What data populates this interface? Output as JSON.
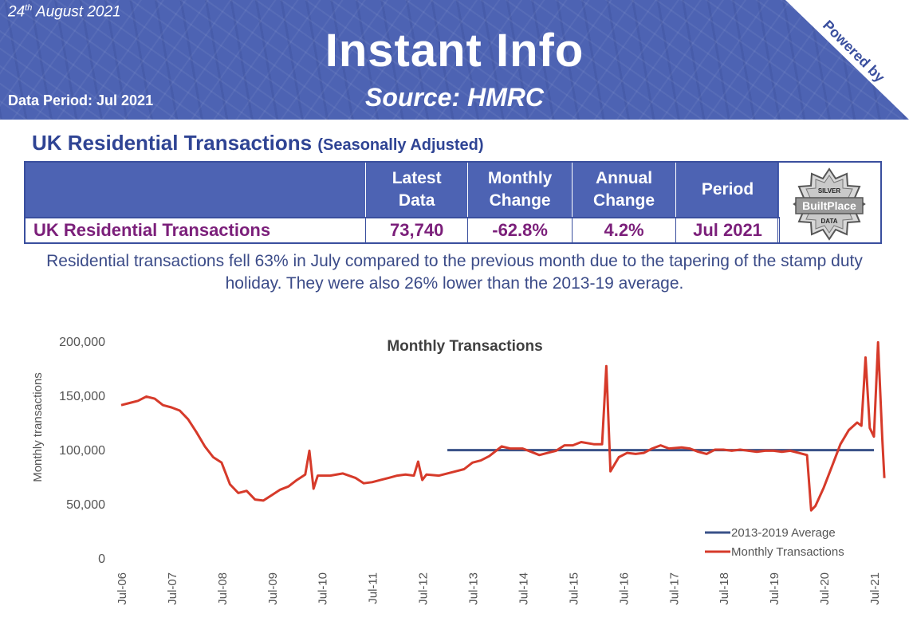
{
  "banner": {
    "date_day": "24",
    "date_suffix": "th",
    "date_rest": " August 2021",
    "title": "Instant Info",
    "source": "Source: HMRC",
    "period": "Data Period: Jul 2021",
    "powered_line1": "Powered by",
    "powered_line2": "BuiltPlace",
    "color": "#4d63b3"
  },
  "section": {
    "title": "UK Residential Transactions",
    "subtitle": "(Seasonally Adjusted)"
  },
  "table": {
    "headers": [
      "",
      "Latest Data",
      "Monthly Change",
      "Annual Change",
      "Period"
    ],
    "header_lines": [
      [
        "",
        ""
      ],
      [
        "Latest",
        "Data"
      ],
      [
        "Monthly",
        "Change"
      ],
      [
        "Annual",
        "Change"
      ],
      [
        "Period",
        ""
      ]
    ],
    "row": [
      "UK Residential Transactions",
      "73,740",
      "-62.8%",
      "4.2%",
      "Jul 2021"
    ]
  },
  "badge": {
    "top": "SILVER",
    "middle": "BuiltPlace",
    "bottom": "DATA"
  },
  "summary": "Residential transactions fell 63% in July compared to the previous month due to the tapering of the stamp duty holiday. They were also 26% lower than the 2013-19 average.",
  "chart_data": {
    "type": "line",
    "title": "Monthly Transactions",
    "ylabel": "Monthly transactions",
    "xlabel": "",
    "ylim": [
      0,
      200000
    ],
    "yticks": [
      "0",
      "50,000",
      "100,000",
      "150,000",
      "200,000"
    ],
    "yticks_values": [
      0,
      50000,
      100000,
      150000,
      200000
    ],
    "xticks": [
      "Jul-06",
      "Jul-07",
      "Jul-08",
      "Jul-09",
      "Jul-10",
      "Jul-11",
      "Jul-12",
      "Jul-13",
      "Jul-14",
      "Jul-15",
      "Jul-16",
      "Jul-17",
      "Jul-18",
      "Jul-19",
      "Jul-20",
      "Jul-21"
    ],
    "legend_position": "bottom-right",
    "grid": false,
    "series": [
      {
        "name": "2013-2019 Average",
        "color": "#3a5288",
        "x": [
          "Jan-13",
          "Jul-21"
        ],
        "values": [
          99500,
          99500
        ]
      },
      {
        "name": "Monthly Transactions",
        "color": "#d63a2a",
        "x_start": "Jul-06",
        "points": [
          [
            0,
            141000
          ],
          [
            2,
            143000
          ],
          [
            4,
            145000
          ],
          [
            6,
            149000
          ],
          [
            8,
            147000
          ],
          [
            10,
            141000
          ],
          [
            12,
            139000
          ],
          [
            14,
            136000
          ],
          [
            16,
            128000
          ],
          [
            18,
            116000
          ],
          [
            20,
            103000
          ],
          [
            22,
            93000
          ],
          [
            24,
            88000
          ],
          [
            26,
            68000
          ],
          [
            28,
            60000
          ],
          [
            30,
            62000
          ],
          [
            32,
            54000
          ],
          [
            34,
            53000
          ],
          [
            36,
            58000
          ],
          [
            38,
            63000
          ],
          [
            40,
            66000
          ],
          [
            42,
            72000
          ],
          [
            44,
            77000
          ],
          [
            45,
            99000
          ],
          [
            46,
            64000
          ],
          [
            47,
            76000
          ],
          [
            50,
            76000
          ],
          [
            53,
            78000
          ],
          [
            56,
            74000
          ],
          [
            58,
            69000
          ],
          [
            60,
            70000
          ],
          [
            62,
            72000
          ],
          [
            64,
            74000
          ],
          [
            66,
            76000
          ],
          [
            68,
            77000
          ],
          [
            70,
            76000
          ],
          [
            71,
            89000
          ],
          [
            72,
            72000
          ],
          [
            73,
            77000
          ],
          [
            76,
            76000
          ],
          [
            80,
            80000
          ],
          [
            82,
            82000
          ],
          [
            84,
            88000
          ],
          [
            86,
            90000
          ],
          [
            88,
            94000
          ],
          [
            91,
            103000
          ],
          [
            93,
            101000
          ],
          [
            96,
            101000
          ],
          [
            98,
            98000
          ],
          [
            100,
            95000
          ],
          [
            102,
            97000
          ],
          [
            104,
            99000
          ],
          [
            106,
            104000
          ],
          [
            108,
            104000
          ],
          [
            110,
            107000
          ],
          [
            113,
            105000
          ],
          [
            115,
            105000
          ],
          [
            116,
            177000
          ],
          [
            117,
            80000
          ],
          [
            119,
            93000
          ],
          [
            121,
            97000
          ],
          [
            123,
            96000
          ],
          [
            125,
            97000
          ],
          [
            127,
            101000
          ],
          [
            129,
            104000
          ],
          [
            131,
            101000
          ],
          [
            134,
            102000
          ],
          [
            136,
            101000
          ],
          [
            138,
            98000
          ],
          [
            140,
            96000
          ],
          [
            142,
            100000
          ],
          [
            144,
            100000
          ],
          [
            146,
            99000
          ],
          [
            148,
            100000
          ],
          [
            150,
            99000
          ],
          [
            152,
            98000
          ],
          [
            154,
            99000
          ],
          [
            156,
            99000
          ],
          [
            158,
            98000
          ],
          [
            160,
            99000
          ],
          [
            162,
            97000
          ],
          [
            164,
            95000
          ],
          [
            165,
            44000
          ],
          [
            166,
            48000
          ],
          [
            168,
            65000
          ],
          [
            170,
            85000
          ],
          [
            172,
            105000
          ],
          [
            174,
            118000
          ],
          [
            176,
            125000
          ],
          [
            177,
            122000
          ],
          [
            178,
            185000
          ],
          [
            179,
            120000
          ],
          [
            180,
            112000
          ],
          [
            181,
            199000
          ],
          [
            182,
            110000
          ],
          [
            182.5,
            73740
          ]
        ]
      }
    ]
  }
}
